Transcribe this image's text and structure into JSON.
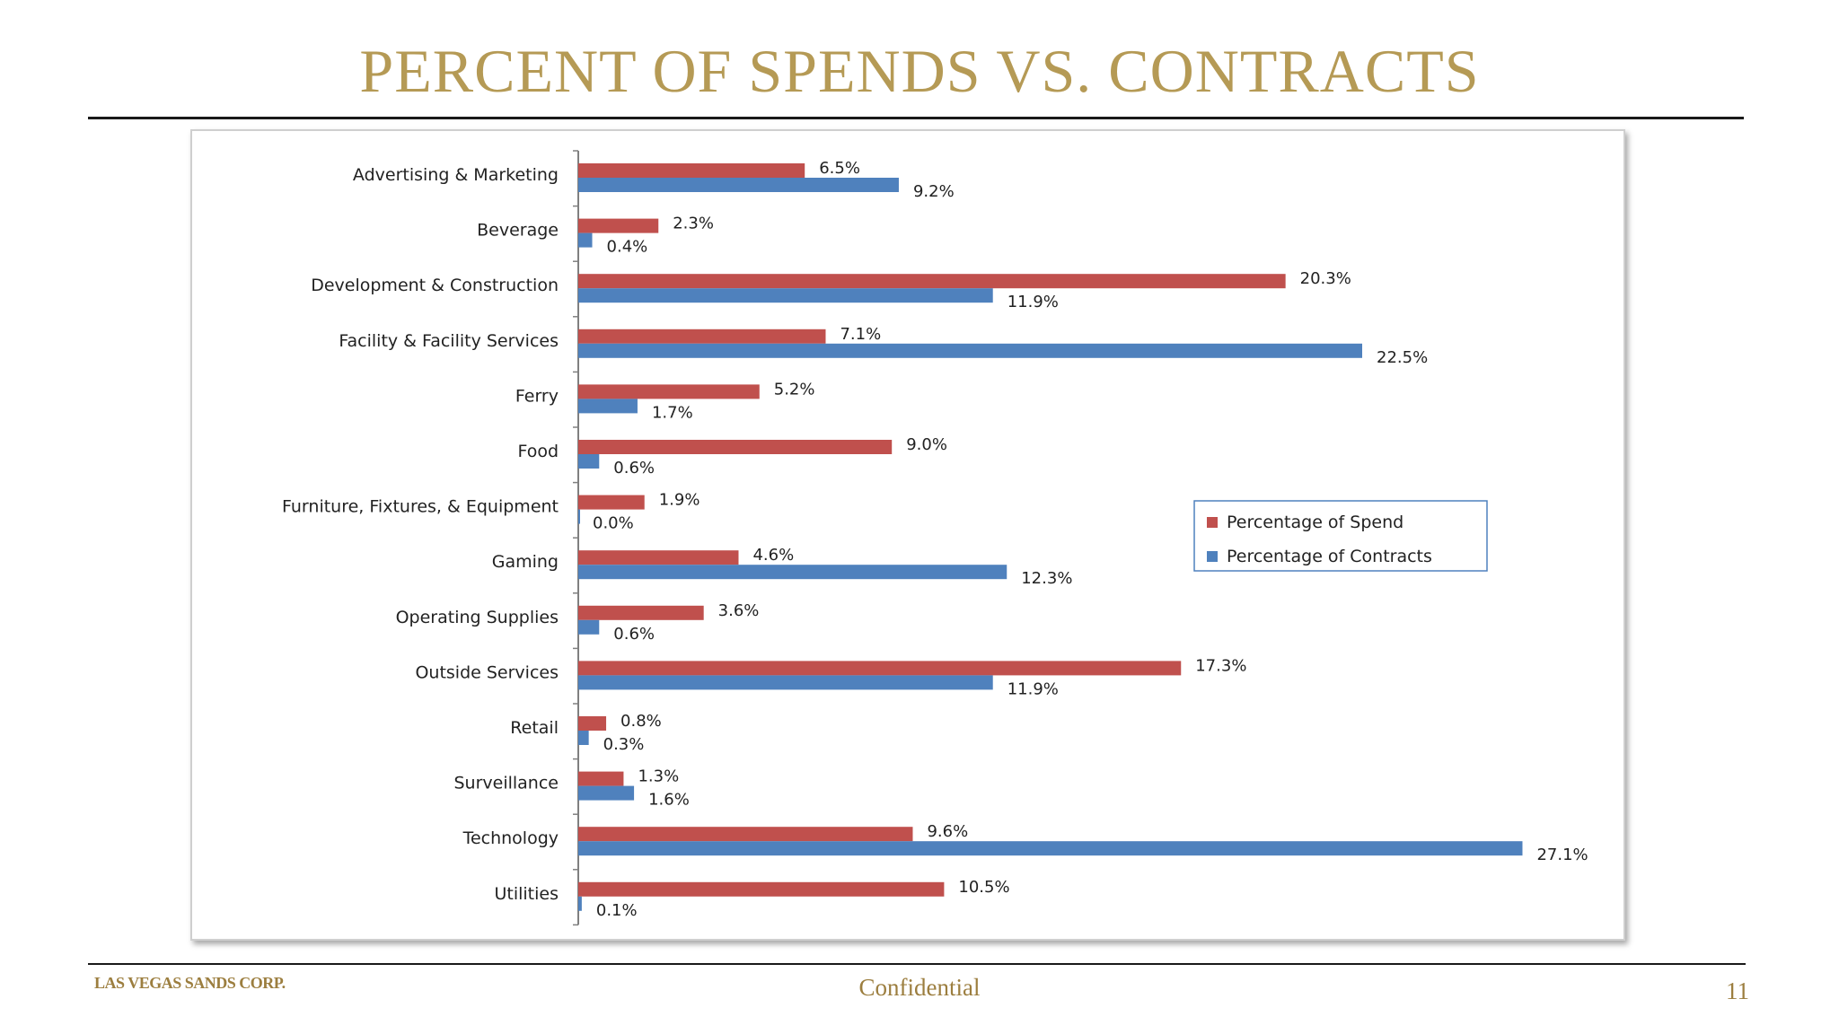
{
  "slide": {
    "title": "PERCENT OF SPENDS VS. CONTRACTS",
    "footer_logo": "LAS VEGAS SANDS CORP.",
    "footer_center": "Confidential",
    "page_number": "11"
  },
  "colors": {
    "title": "#b59a55",
    "footer": "#9c7e3f",
    "spend": "#c0504d",
    "contracts": "#4f81bd"
  },
  "chart_data": {
    "type": "bar",
    "orientation": "horizontal",
    "categories": [
      "Advertising & Marketing",
      "Beverage",
      "Development & Construction",
      "Facility & Facility Services",
      "Ferry",
      "Food",
      "Furniture, Fixtures, & Equipment",
      "Gaming",
      "Operating Supplies",
      "Outside Services",
      "Retail",
      "Surveillance",
      "Technology",
      "Utilities"
    ],
    "series": [
      {
        "name": "Percentage of Spend",
        "color": "#c0504d",
        "values": [
          6.5,
          2.3,
          20.3,
          7.1,
          5.2,
          9.0,
          1.9,
          4.6,
          3.6,
          17.3,
          0.8,
          1.3,
          9.6,
          10.5
        ],
        "labels": [
          "6.5%",
          "2.3%",
          "20.3%",
          "7.1%",
          "5.2%",
          "9.0%",
          "1.9%",
          "4.6%",
          "3.6%",
          "17.3%",
          "0.8%",
          "1.3%",
          "9.6%",
          "10.5%"
        ]
      },
      {
        "name": "Percentage of Contracts",
        "color": "#4f81bd",
        "values": [
          9.2,
          0.4,
          11.9,
          22.5,
          1.7,
          0.6,
          0.0,
          12.3,
          0.6,
          11.9,
          0.3,
          1.6,
          27.1,
          0.1
        ],
        "labels": [
          "9.2%",
          "0.4%",
          "11.9%",
          "22.5%",
          "1.7%",
          "0.6%",
          "0.0%",
          "12.3%",
          "0.6%",
          "11.9%",
          "0.3%",
          "1.6%",
          "27.1%",
          "0.1%"
        ]
      }
    ],
    "xlim": [
      0,
      30
    ],
    "x_axis_visible": false,
    "grid": false,
    "legend_position": "right"
  }
}
